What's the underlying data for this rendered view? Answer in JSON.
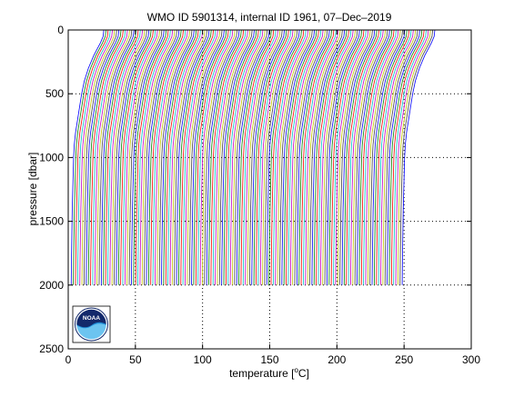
{
  "chart_data": {
    "type": "line",
    "title": "WMO ID 5901314, internal ID 1961, 07–Dec–2019",
    "xlabel_pre": "temperature [",
    "xlabel_unit": "o",
    "xlabel_post": "C]",
    "ylabel": "pressure [dbar]",
    "xlim": [
      0,
      300
    ],
    "ylim": [
      2500,
      0
    ],
    "y_reversed": true,
    "x_ticks": [
      "0",
      "50",
      "100",
      "150",
      "200",
      "250",
      "300"
    ],
    "y_ticks": [
      "0",
      "500",
      "1000",
      "1500",
      "2000",
      "2500"
    ],
    "grid": "dotted",
    "legend": "none",
    "n_profiles": 155,
    "profile_x_offset_step": 1.6,
    "profile_template": {
      "pressure": [
        0,
        50,
        100,
        150,
        200,
        300,
        400,
        500,
        600,
        700,
        800,
        900,
        1000,
        1200,
        1400,
        1600,
        1800,
        2000
      ],
      "temperature": [
        26.5,
        26.0,
        24.0,
        21.5,
        19.0,
        15.0,
        12.0,
        10.0,
        8.5,
        7.0,
        5.5,
        4.5,
        4.0,
        3.5,
        3.0,
        2.7,
        2.4,
        2.2
      ]
    },
    "series_colors": [
      "#0000ff",
      "#008000",
      "#ff0000",
      "#00bfbf",
      "#bf00bf",
      "#bfbf00",
      "#404040"
    ]
  },
  "logo": {
    "text": "NOAA",
    "colors": {
      "navy": "#13296b",
      "blue": "#1f8fd8",
      "light": "#6cc4f0"
    }
  }
}
